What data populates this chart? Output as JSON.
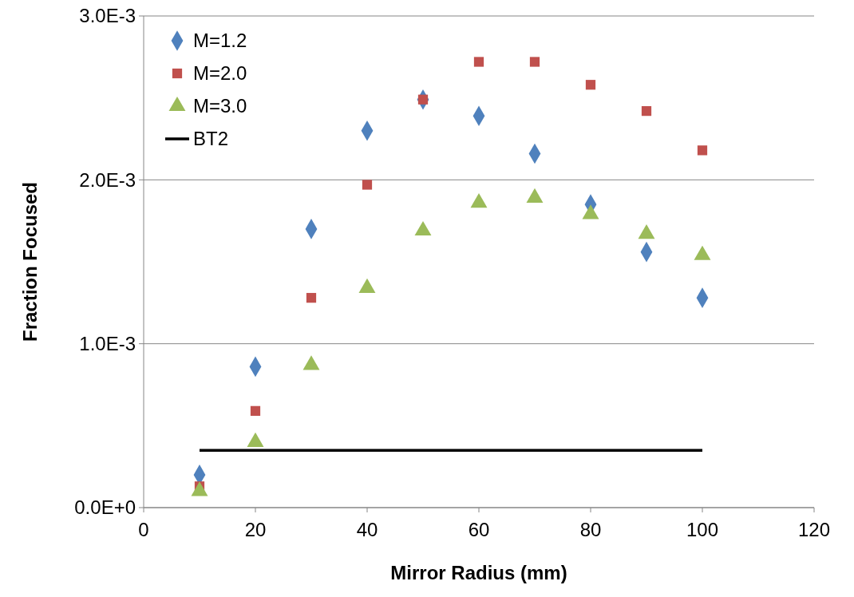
{
  "chart_data": {
    "type": "scatter",
    "xlabel": "Mirror Radius (mm)",
    "ylabel": "Fraction Focused",
    "x": [
      10,
      20,
      30,
      40,
      50,
      60,
      70,
      80,
      90,
      100
    ],
    "series": [
      {
        "name": "M=1.2",
        "color": "#4f81bd",
        "marker": "diamond",
        "values": [
          0.0002,
          0.00086,
          0.0017,
          0.0023,
          0.00249,
          0.00239,
          0.00216,
          0.00185,
          0.00156,
          0.00128
        ]
      },
      {
        "name": "M=2.0",
        "color": "#c0504d",
        "marker": "square",
        "values": [
          0.00013,
          0.00059,
          0.00128,
          0.00197,
          0.00249,
          0.00272,
          0.00272,
          0.00258,
          0.00242,
          0.00218
        ]
      },
      {
        "name": "M=3.0",
        "color": "#9bbb59",
        "marker": "triangle",
        "values": [
          0.0001,
          0.0004,
          0.00087,
          0.00134,
          0.00169,
          0.00186,
          0.00189,
          0.00179,
          0.00167,
          0.00154
        ]
      },
      {
        "name": "BT2",
        "type": "line",
        "color": "#000000",
        "marker": "none",
        "x": [
          10,
          100
        ],
        "values": [
          0.00035,
          0.00035
        ]
      }
    ],
    "xlim": [
      0,
      120
    ],
    "xticks": [
      0,
      20,
      40,
      60,
      80,
      100,
      120
    ],
    "ylim": [
      0,
      0.003
    ],
    "yticks": [
      {
        "value": 0,
        "label": "0.0E+0"
      },
      {
        "value": 0.001,
        "label": "1.0E-3"
      },
      {
        "value": 0.002,
        "label": "2.0E-3"
      },
      {
        "value": 0.003,
        "label": "3.0E-3"
      }
    ],
    "grid": "y",
    "legend": "top left"
  }
}
